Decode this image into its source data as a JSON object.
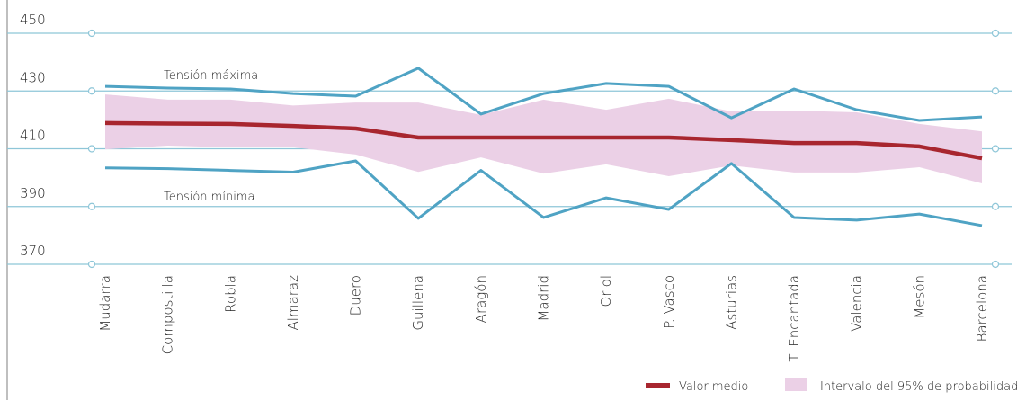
{
  "chart_data": {
    "type": "line",
    "categories": [
      "Mudarra",
      "Compostilla",
      "Robla",
      "Almaraz",
      "Duero",
      "Guillena",
      "Aragón",
      "Madrid",
      "Oriol",
      "P. Vasco",
      "Asturias",
      "T. Encantada",
      "Valencia",
      "Mesón",
      "Barcelona"
    ],
    "series": [
      {
        "name": "Tensión máxima",
        "color": "#4fa3c4",
        "values": [
          431.6,
          431,
          430.7,
          429.1,
          428.2,
          437.9,
          422,
          429.1,
          432.6,
          431.6,
          420.7,
          430.7,
          423.5,
          419.8,
          421
        ]
      },
      {
        "name": "Tensión mínima",
        "color": "#4fa3c4",
        "values": [
          403.4,
          403.1,
          402.5,
          401.9,
          405.8,
          385.9,
          402.5,
          386.2,
          393,
          389,
          404.9,
          386.2,
          385.3,
          387.4,
          383.4
        ]
      },
      {
        "name": "Valor medio",
        "color": "#a8262f",
        "values": [
          418.9,
          418.7,
          418.6,
          417.9,
          417,
          413.9,
          413.9,
          413.9,
          413.9,
          413.9,
          413,
          412,
          412,
          410.8,
          406.7
        ]
      }
    ],
    "band": {
      "name": "Intervalo del 95% de probabilidad",
      "color": "#ebd0e6",
      "upper": [
        428.8,
        427,
        427,
        425,
        426,
        426,
        421.7,
        427,
        423.5,
        427.3,
        422.9,
        423.2,
        422.6,
        418.6,
        416
      ],
      "lower": [
        409.8,
        411.1,
        410.5,
        410.5,
        408,
        402,
        407,
        401.4,
        404.6,
        400.5,
        404.2,
        401.8,
        401.8,
        403.6,
        398
      ]
    },
    "ylim": [
      370,
      450
    ],
    "yticks": [
      370,
      390,
      410,
      430,
      450
    ],
    "grid": true
  }
}
